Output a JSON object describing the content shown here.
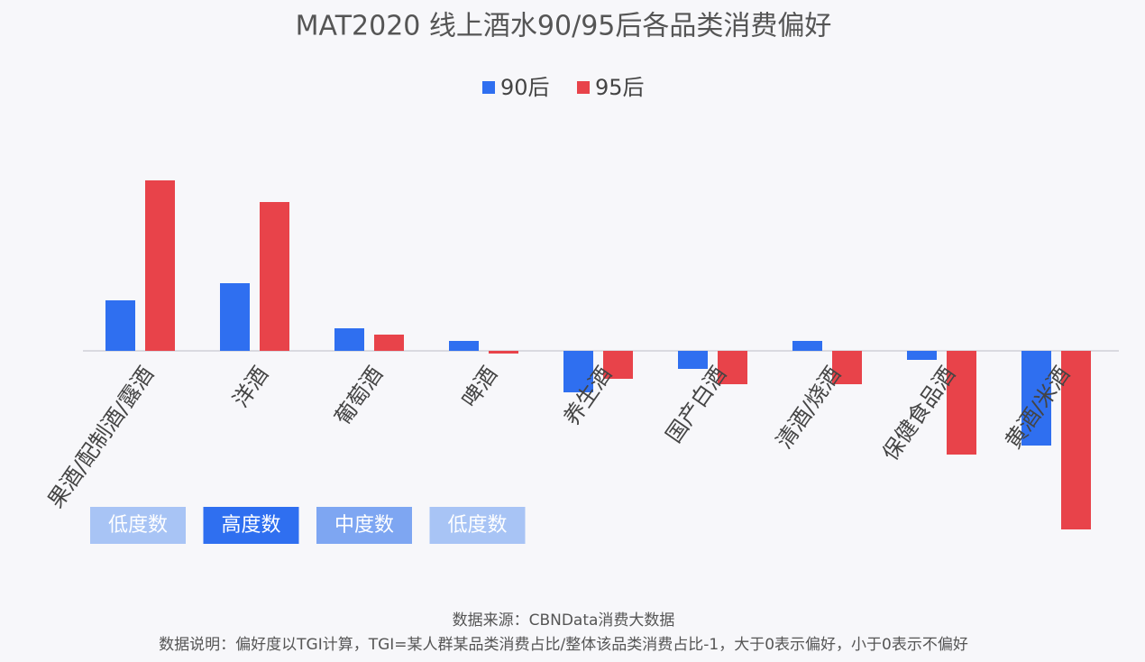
{
  "chart_data": {
    "type": "bar",
    "title": "MAT2020 线上酒水90/95后各品类消费偏好",
    "categories": [
      "果酒/配制酒/露酒",
      "洋酒",
      "葡萄酒",
      "啤酒",
      "养生酒",
      "国产白酒",
      "清酒/烧酒",
      "保健食品酒",
      "黄酒/米酒"
    ],
    "series": [
      {
        "name": "90后",
        "color": "#2f6ff0",
        "values": [
          0.56,
          0.75,
          0.25,
          0.11,
          -0.46,
          -0.2,
          0.11,
          -0.1,
          -1.05
        ]
      },
      {
        "name": "95后",
        "color": "#e8434a",
        "values": [
          1.89,
          1.65,
          0.18,
          -0.03,
          -0.31,
          -0.37,
          -0.37,
          -1.15,
          -1.98
        ]
      }
    ],
    "ylim": [
      -2,
      2
    ],
    "annotations": [
      {
        "text": "低度数",
        "color": "#a8c4f5"
      },
      {
        "text": "高度数",
        "color": "#2f6ff0"
      },
      {
        "text": "中度数",
        "color": "#7ea6f2"
      },
      {
        "text": "低度数",
        "color": "#a8c4f5"
      }
    ],
    "source": "数据来源：CBNData消费大数据",
    "note": "数据说明：偏好度以TGI计算，TGI=某人群某品类消费占比/整体该品类消费占比-1，大于0表示偏好，小于0表示不偏好"
  }
}
